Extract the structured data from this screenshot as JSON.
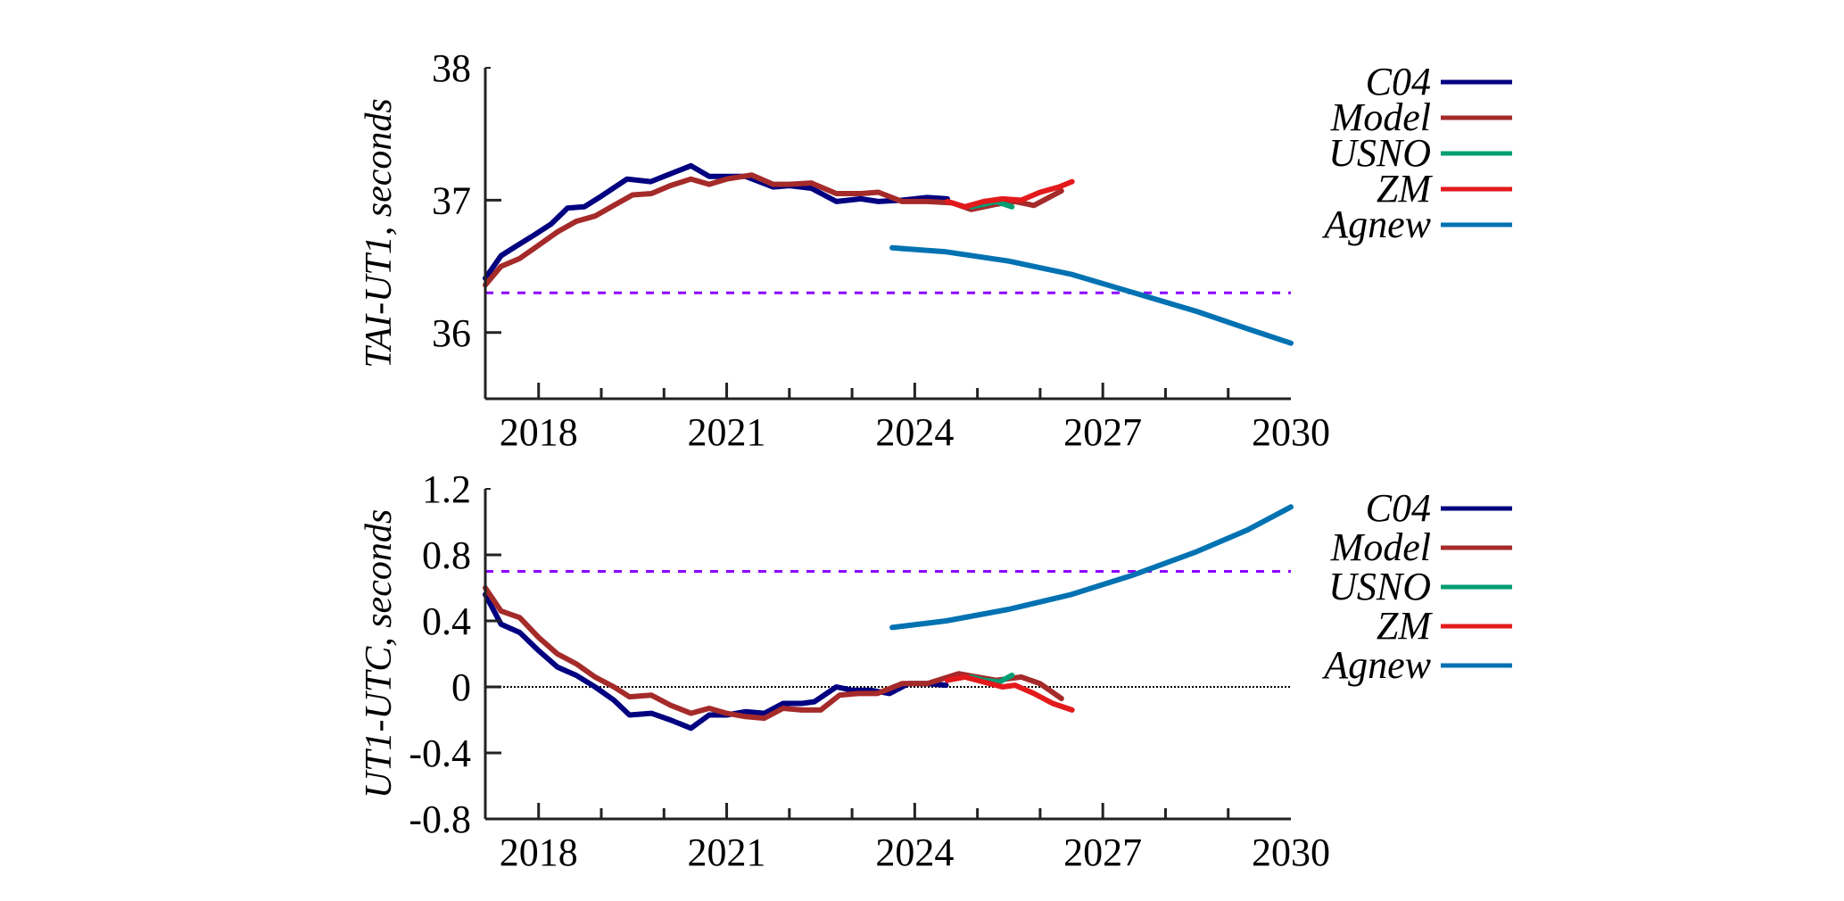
{
  "chart_data": [
    {
      "type": "line",
      "title": "",
      "xlabel": "",
      "ylabel": "TAI-UT1, seconds",
      "xlim": [
        2017.15,
        2030
      ],
      "ylim": [
        35.5,
        38
      ],
      "xticks": [
        2018,
        2021,
        2024,
        2027,
        2030
      ],
      "xticks_minor": [
        2019,
        2020,
        2022,
        2023,
        2025,
        2026,
        2028,
        2029
      ],
      "yticks": [
        36,
        37,
        38
      ],
      "xtick_labels": [
        "2018",
        "2021",
        "2024",
        "2027",
        "2030"
      ],
      "ytick_labels": [
        "36",
        "37",
        "38"
      ],
      "grid": false,
      "legend_position": "right-top",
      "reference_lines": [
        {
          "name": "threshold",
          "y": 36.3,
          "style": "dashed",
          "color": "#8b00ff"
        }
      ],
      "series": [
        {
          "name": "C04",
          "color": "#000080",
          "x": [
            2017.15,
            2017.4,
            2017.6,
            2017.94,
            2018.2,
            2018.46,
            2018.73,
            2019.0,
            2019.41,
            2019.79,
            2020.0,
            2020.43,
            2020.72,
            2021.0,
            2021.3,
            2021.74,
            2022.0,
            2022.35,
            2022.75,
            2023.14,
            2023.42,
            2023.8,
            2024.2,
            2024.52
          ],
          "y": [
            36.41,
            36.58,
            36.64,
            36.74,
            36.82,
            36.94,
            36.95,
            37.03,
            37.16,
            37.14,
            37.18,
            37.26,
            37.18,
            37.18,
            37.18,
            37.1,
            37.11,
            37.09,
            36.99,
            37.01,
            36.99,
            37.0,
            37.02,
            37.01
          ]
        },
        {
          "name": "Model",
          "color": "#a52a2a",
          "x": [
            2017.15,
            2017.4,
            2017.7,
            2018.0,
            2018.3,
            2018.6,
            2018.9,
            2019.2,
            2019.5,
            2019.8,
            2020.1,
            2020.43,
            2020.72,
            2021.0,
            2021.4,
            2021.74,
            2022.0,
            2022.35,
            2022.75,
            2023.14,
            2023.42,
            2023.8,
            2024.2,
            2024.6,
            2024.9,
            2025.3,
            2025.6,
            2025.9,
            2026.34
          ],
          "y": [
            36.36,
            36.5,
            36.56,
            36.66,
            36.76,
            36.84,
            36.88,
            36.96,
            37.04,
            37.05,
            37.11,
            37.16,
            37.12,
            37.16,
            37.19,
            37.12,
            37.12,
            37.13,
            37.05,
            37.05,
            37.06,
            36.99,
            36.99,
            36.98,
            36.93,
            36.97,
            36.99,
            36.96,
            37.07
          ]
        },
        {
          "name": "USNO",
          "color": "#009e73",
          "x": [
            2024.9,
            2025.1,
            2025.3,
            2025.55
          ],
          "y": [
            36.95,
            36.97,
            36.99,
            36.95
          ]
        },
        {
          "name": "ZM",
          "color": "#e31a1c",
          "x": [
            2024.52,
            2024.8,
            2025.1,
            2025.4,
            2025.7,
            2026.0,
            2026.3,
            2026.51
          ],
          "y": [
            36.99,
            36.95,
            36.99,
            37.01,
            37.0,
            37.06,
            37.1,
            37.14
          ]
        },
        {
          "name": "Agnew",
          "color": "#0072b2",
          "x": [
            2023.64,
            2024.5,
            2025.5,
            2026.5,
            2027.5,
            2028.5,
            2029.3,
            2030.0
          ],
          "y": [
            36.64,
            36.61,
            36.54,
            36.44,
            36.3,
            36.16,
            36.03,
            35.92
          ]
        }
      ]
    },
    {
      "type": "line",
      "title": "",
      "xlabel": "",
      "ylabel": "UT1-UTC, seconds",
      "xlim": [
        2017.15,
        2030
      ],
      "ylim": [
        -0.8,
        1.2
      ],
      "xticks": [
        2018,
        2021,
        2024,
        2027,
        2030
      ],
      "xticks_minor": [
        2019,
        2020,
        2022,
        2023,
        2025,
        2026,
        2028,
        2029
      ],
      "yticks": [
        -0.8,
        -0.4,
        0,
        0.4,
        0.8,
        1.2
      ],
      "xtick_labels": [
        "2018",
        "2021",
        "2024",
        "2027",
        "2030"
      ],
      "ytick_labels": [
        "-0.8",
        "-0.4",
        "0",
        "0.4",
        "0.8",
        "1.2"
      ],
      "grid": false,
      "legend_position": "right-top",
      "reference_lines": [
        {
          "name": "threshold",
          "y": 0.7,
          "style": "dashed",
          "color": "#8b00ff"
        },
        {
          "name": "zero-line",
          "y": 0,
          "style": "dotted",
          "color": "#000000"
        }
      ],
      "series": [
        {
          "name": "C04",
          "color": "#000080",
          "x": [
            2017.15,
            2017.4,
            2017.7,
            2018.0,
            2018.3,
            2018.6,
            2018.9,
            2019.2,
            2019.45,
            2019.8,
            2020.1,
            2020.43,
            2020.72,
            2021.0,
            2021.3,
            2021.6,
            2021.9,
            2022.2,
            2022.4,
            2022.75,
            2023.0,
            2023.3,
            2023.6,
            2023.9,
            2024.2,
            2024.5
          ],
          "y": [
            0.56,
            0.38,
            0.33,
            0.22,
            0.12,
            0.07,
            0.0,
            -0.08,
            -0.17,
            -0.16,
            -0.2,
            -0.25,
            -0.17,
            -0.17,
            -0.15,
            -0.16,
            -0.1,
            -0.1,
            -0.09,
            0.0,
            -0.02,
            -0.02,
            -0.04,
            0.02,
            0.02,
            0.01
          ]
        },
        {
          "name": "Model",
          "color": "#a52a2a",
          "x": [
            2017.15,
            2017.4,
            2017.7,
            2018.0,
            2018.3,
            2018.6,
            2018.9,
            2019.2,
            2019.45,
            2019.8,
            2020.1,
            2020.43,
            2020.72,
            2021.0,
            2021.3,
            2021.6,
            2021.9,
            2022.2,
            2022.5,
            2022.8,
            2023.1,
            2023.4,
            2023.8,
            2024.2,
            2024.7,
            2025.0,
            2025.3,
            2025.7,
            2026.0,
            2026.34
          ],
          "y": [
            0.6,
            0.46,
            0.42,
            0.3,
            0.2,
            0.14,
            0.06,
            0.0,
            -0.06,
            -0.05,
            -0.11,
            -0.16,
            -0.13,
            -0.16,
            -0.18,
            -0.19,
            -0.13,
            -0.14,
            -0.14,
            -0.05,
            -0.04,
            -0.04,
            0.02,
            0.02,
            0.08,
            0.06,
            0.04,
            0.06,
            0.02,
            -0.07
          ]
        },
        {
          "name": "USNO",
          "color": "#009e73",
          "x": [
            2024.9,
            2025.1,
            2025.35,
            2025.55
          ],
          "y": [
            0.06,
            0.04,
            0.03,
            0.07
          ]
        },
        {
          "name": "ZM",
          "color": "#e31a1c",
          "x": [
            2024.52,
            2024.8,
            2025.1,
            2025.4,
            2025.6,
            2025.9,
            2026.2,
            2026.51
          ],
          "y": [
            0.04,
            0.06,
            0.03,
            0.0,
            0.01,
            -0.04,
            -0.1,
            -0.14
          ]
        },
        {
          "name": "Agnew",
          "color": "#0072b2",
          "x": [
            2023.64,
            2024.5,
            2025.5,
            2026.5,
            2027.5,
            2028.5,
            2029.3,
            2030.0
          ],
          "y": [
            0.36,
            0.4,
            0.47,
            0.56,
            0.68,
            0.82,
            0.95,
            1.09
          ]
        }
      ]
    }
  ]
}
